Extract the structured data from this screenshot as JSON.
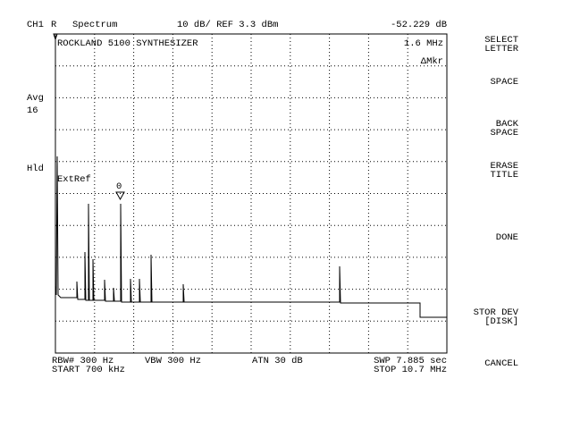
{
  "header": {
    "channel": "CH1",
    "mode": "R",
    "measurement": "Spectrum",
    "scale": "10 dB/ REF 3.3 dBm",
    "readout": "-52.229 dB"
  },
  "screen": {
    "title": "ROCKLAND 5100 SYNTHESIZER",
    "marker_freq": "1.6 MHz",
    "marker_mode": "ΔMkr",
    "ext_ref": "ExtRef",
    "marker_id": "0"
  },
  "left_status": {
    "avg": "Avg",
    "avg_count": "16",
    "hold": "Hld"
  },
  "footer": {
    "rbw": "RBW# 300 Hz",
    "vbw": "VBW 300 Hz",
    "atn": "ATN  30 dB",
    "swp": "SWP  7.885 sec",
    "start": "START  700 kHz",
    "stop": "STOP  10.7 MHz"
  },
  "softkeys": [
    [
      "SELECT",
      "LETTER"
    ],
    [
      "SPACE"
    ],
    [
      "BACK",
      "SPACE"
    ],
    [
      "ERASE",
      "TITLE"
    ],
    [
      "DONE"
    ],
    [
      "STOR DEV",
      "[DISK]"
    ],
    [
      "CANCEL"
    ]
  ]
}
